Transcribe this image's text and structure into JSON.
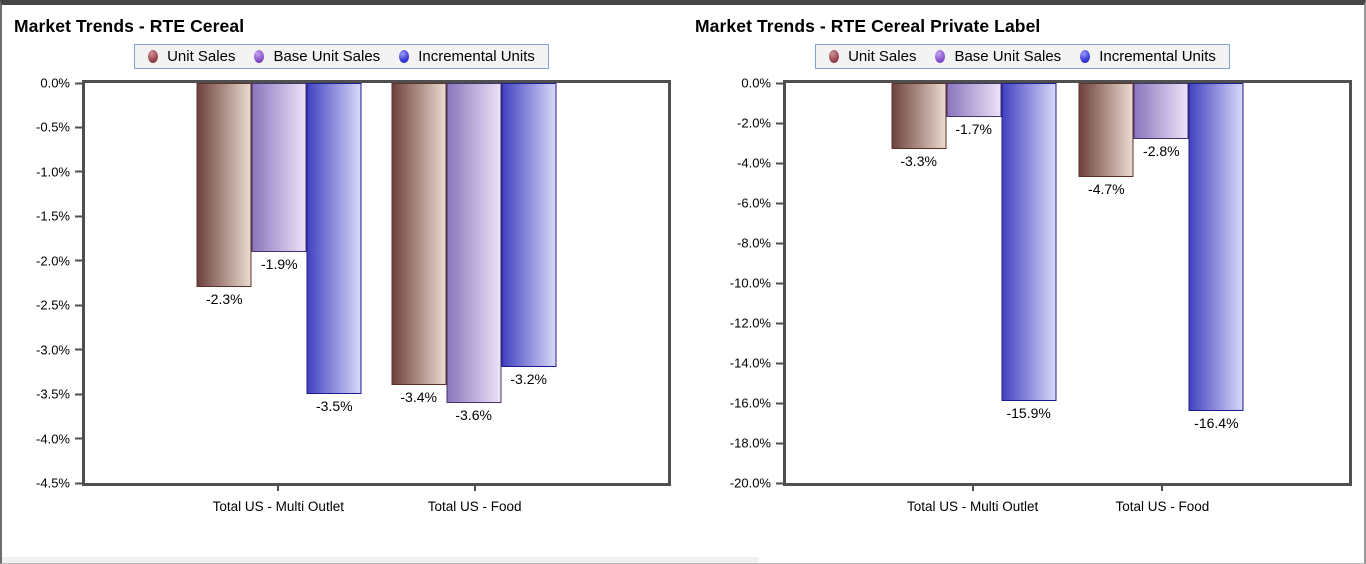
{
  "window": {
    "bg": "#ffffff",
    "frame_color": "#464646"
  },
  "legend_style": {
    "border_color": "#7ea4d8",
    "bg_color": "#f3f3f3"
  },
  "axis_style": {
    "color": "#4f4f4f"
  },
  "chart_data": [
    {
      "type": "bar",
      "title": "Market Trends - RTE Cereal",
      "categories": [
        "Total US - Multi Outlet",
        "Total US - Food"
      ],
      "series": [
        {
          "name": "Unit Sales",
          "values": [
            -2.3,
            -3.4
          ],
          "labels": [
            "-2.3%",
            "-3.4%"
          ],
          "colors": {
            "stroke": "#5c2f2b",
            "dark": "#6e423e",
            "light": "#eadacf",
            "marker": "#a04a52",
            "marker_hi": "#cf9099",
            "marker_dark": "#6f2b33"
          }
        },
        {
          "name": "Base Unit Sales",
          "values": [
            -1.9,
            -3.6
          ],
          "labels": [
            "-1.9%",
            "-3.6%"
          ],
          "colors": {
            "stroke": "#483069",
            "dark": "#8a76bc",
            "light": "#ece2f8",
            "marker": "#8f57d1",
            "marker_hi": "#c5a5ec",
            "marker_dark": "#5f35a0"
          }
        },
        {
          "name": "Incremental Units",
          "values": [
            -3.5,
            -3.2
          ],
          "labels": [
            "-3.5%",
            "-3.2%"
          ],
          "colors": {
            "stroke": "#1c1c90",
            "dark": "#4242c0",
            "light": "#d8d8f8",
            "marker": "#3f3fdc",
            "marker_hi": "#9c9cf2",
            "marker_dark": "#1d1da8"
          }
        }
      ],
      "ylim": [
        0,
        -4.5
      ],
      "yticks": [
        "0.0%",
        "-0.5%",
        "-1.0%",
        "-1.5%",
        "-2.0%",
        "-2.5%",
        "-3.0%",
        "-3.5%",
        "-4.0%",
        "-4.5%"
      ],
      "legend_position": "top",
      "grid": false
    },
    {
      "type": "bar",
      "title": "Market Trends - RTE Cereal Private Label",
      "categories": [
        "Total US - Multi Outlet",
        "Total US - Food"
      ],
      "series": [
        {
          "name": "Unit Sales",
          "values": [
            -3.3,
            -4.7
          ],
          "labels": [
            "-3.3%",
            "-4.7%"
          ],
          "colors": {
            "stroke": "#5c2f2b",
            "dark": "#6e423e",
            "light": "#eadacf",
            "marker": "#a04a52",
            "marker_hi": "#cf9099",
            "marker_dark": "#6f2b33"
          }
        },
        {
          "name": "Base Unit Sales",
          "values": [
            -1.7,
            -2.8
          ],
          "labels": [
            "-1.7%",
            "-2.8%"
          ],
          "colors": {
            "stroke": "#483069",
            "dark": "#8a76bc",
            "light": "#ece2f8",
            "marker": "#8f57d1",
            "marker_hi": "#c5a5ec",
            "marker_dark": "#5f35a0"
          }
        },
        {
          "name": "Incremental Units",
          "values": [
            -15.9,
            -16.4
          ],
          "labels": [
            "-15.9%",
            "-16.4%"
          ],
          "colors": {
            "stroke": "#1c1c90",
            "dark": "#4242c0",
            "light": "#d8d8f8",
            "marker": "#3f3fdc",
            "marker_hi": "#9c9cf2",
            "marker_dark": "#1d1da8"
          }
        }
      ],
      "ylim": [
        0,
        -20.0
      ],
      "yticks": [
        "0.0%",
        "-2.0%",
        "-4.0%",
        "-6.0%",
        "-8.0%",
        "-10.0%",
        "-12.0%",
        "-14.0%",
        "-16.0%",
        "-18.0%",
        "-20.0%"
      ],
      "legend_position": "top",
      "grid": false
    }
  ]
}
